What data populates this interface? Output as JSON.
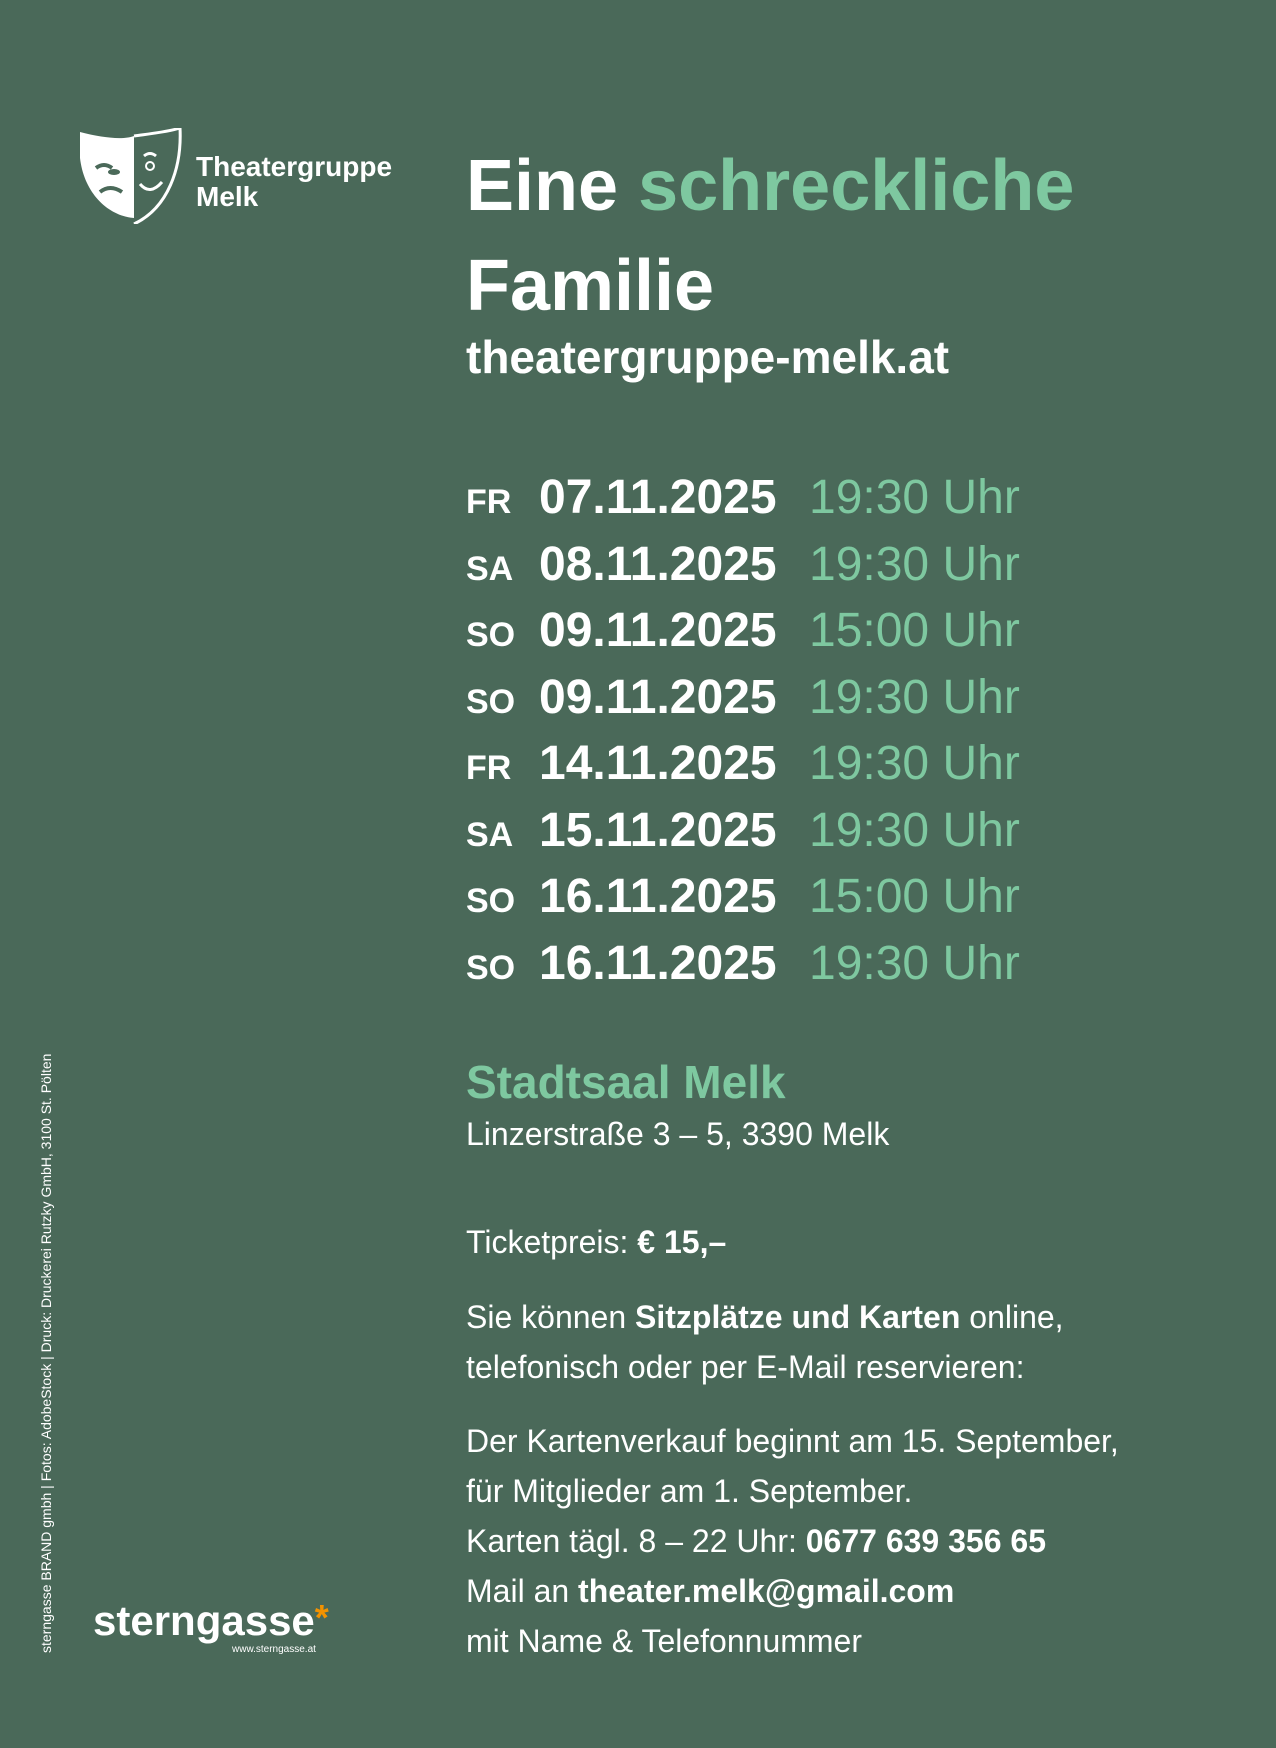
{
  "logo": {
    "icon": "theater-masks-icon",
    "line1": "Theatergruppe",
    "line2": "Melk"
  },
  "title": {
    "word1": "Eine",
    "word2": "schreckliche",
    "line2": "Familie"
  },
  "website": "theatergruppe-melk.at",
  "performances": [
    {
      "day": "FR",
      "date": "07.11.2025",
      "time": "19:30 Uhr"
    },
    {
      "day": "SA",
      "date": "08.11.2025",
      "time": "19:30 Uhr"
    },
    {
      "day": "SO",
      "date": "09.11.2025",
      "time": "15:00 Uhr"
    },
    {
      "day": "SO",
      "date": "09.11.2025",
      "time": "19:30 Uhr"
    },
    {
      "day": "FR",
      "date": "14.11.2025",
      "time": "19:30 Uhr"
    },
    {
      "day": "SA",
      "date": "15.11.2025",
      "time": "19:30 Uhr"
    },
    {
      "day": "SO",
      "date": "16.11.2025",
      "time": "15:00 Uhr"
    },
    {
      "day": "SO",
      "date": "16.11.2025",
      "time": "19:30 Uhr"
    }
  ],
  "venue": {
    "name": "Stadtsaal Melk",
    "address": "Linzerstraße 3 – 5, 3390 Melk"
  },
  "ticket": {
    "label": "Ticketpreis:",
    "price": "€ 15,–"
  },
  "reservation": {
    "pre": "Sie können ",
    "bold": "Sitzplätze und Karten",
    "post": " online,",
    "line2": "telefonisch oder per E-Mail reservieren:"
  },
  "sales": {
    "line1": "Der Kartenverkauf beginnt am 15. September,",
    "line2": "für Mitglieder am 1. September.",
    "phone_label": "Karten tägl. 8 – 22 Uhr: ",
    "phone": "0677 639 356 65",
    "mail_label": "Mail an ",
    "mail": "theater.melk@gmail.com",
    "line5": "mit Name & Telefonnummer"
  },
  "credits": "sterngasse BRAND gmbh | Fotos: AdobeStock | Druck: Druckerei Rutzky GmbH, 3100 St. Pölten",
  "brand": {
    "name": "sterngasse",
    "star": "*",
    "url": "www.sterngasse.at"
  },
  "colors": {
    "background": "#4a6959",
    "accent": "#7ec8a0",
    "brand_star": "#f39200"
  }
}
